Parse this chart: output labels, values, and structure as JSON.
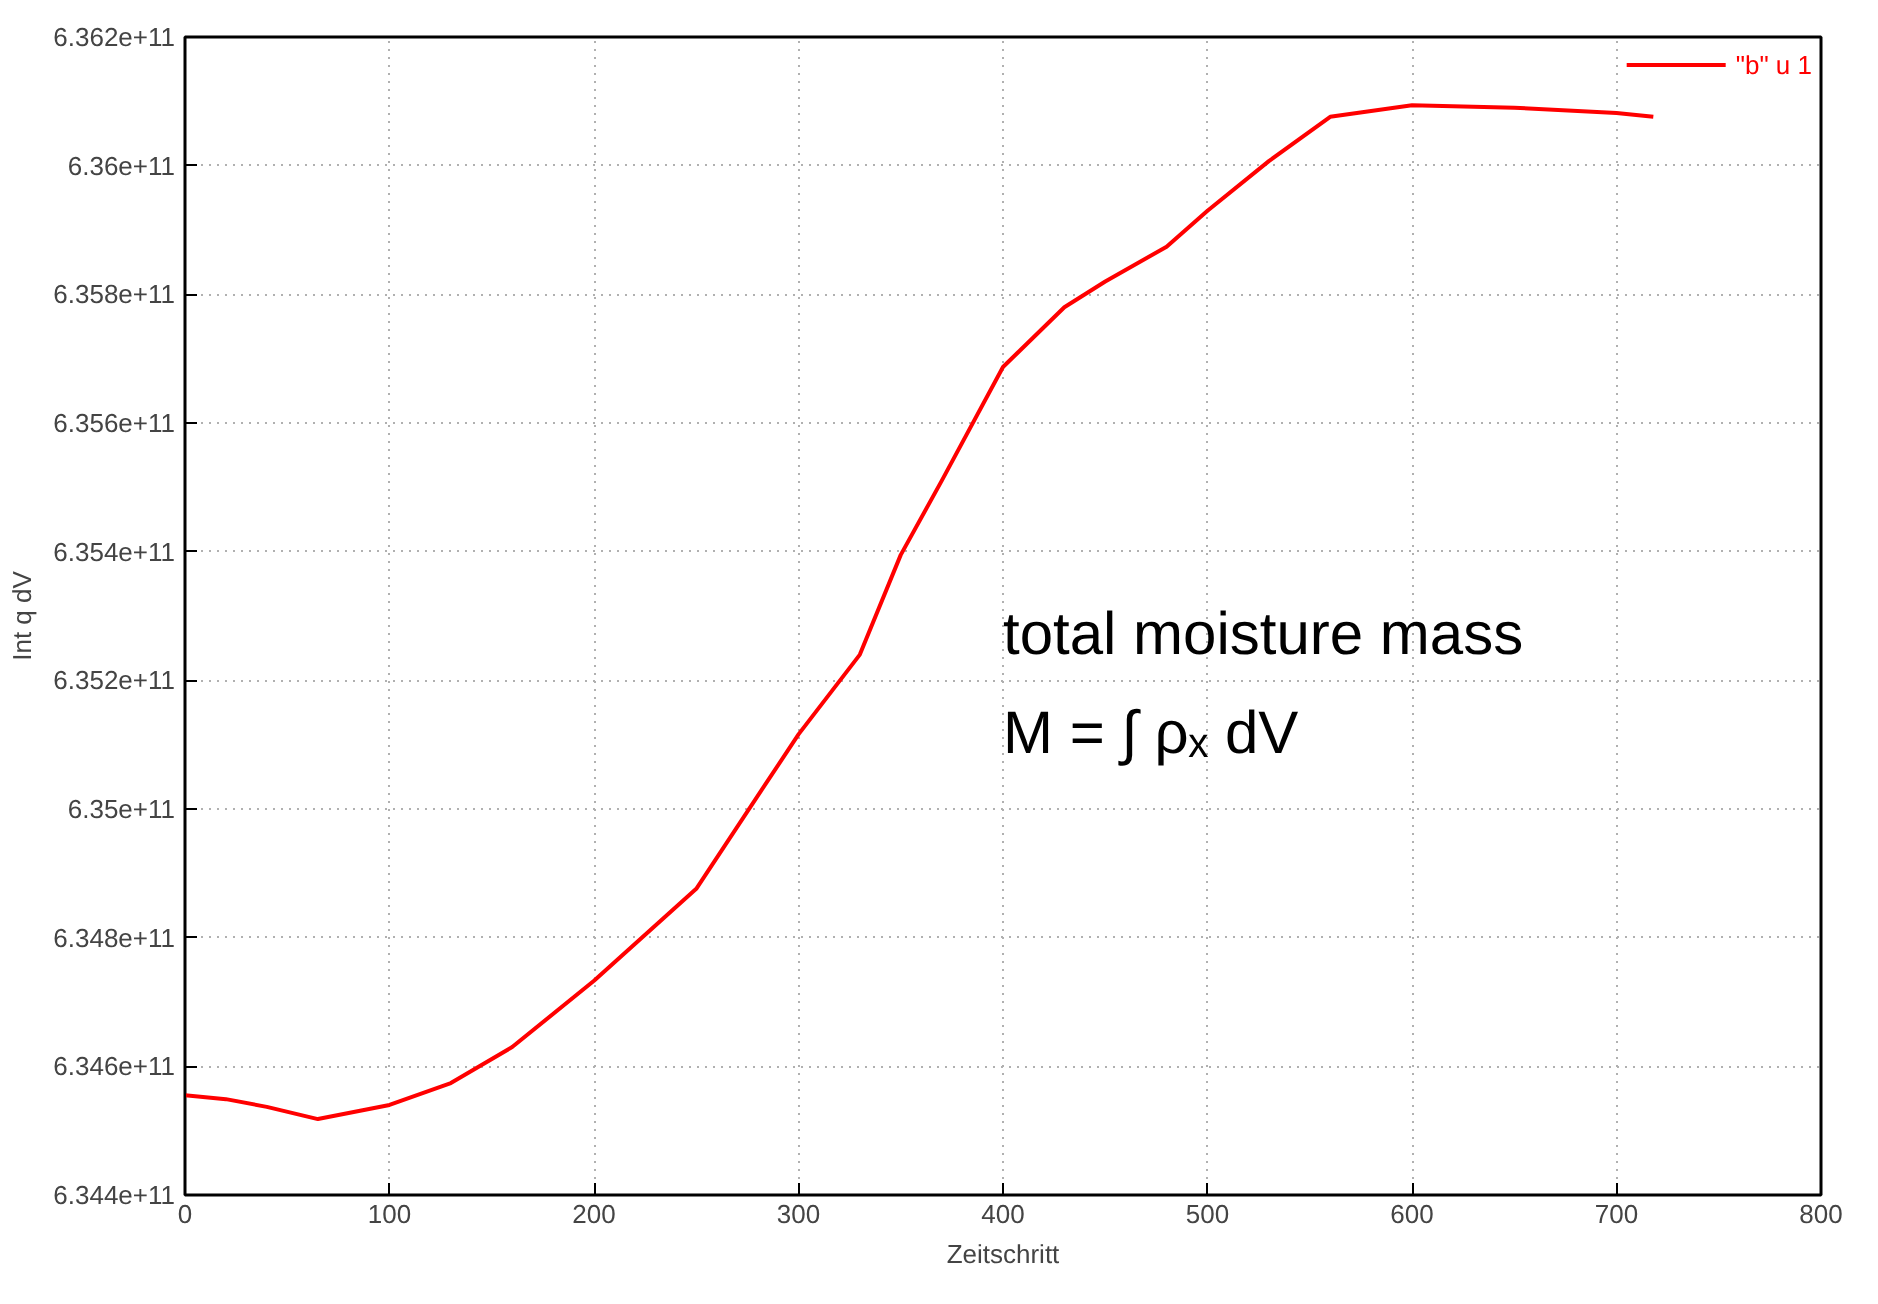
{
  "chart_data": {
    "type": "line",
    "xlabel": "Zeitschritt",
    "ylabel": "Int q dV",
    "x": [
      0,
      20,
      40,
      65,
      100,
      130,
      160,
      200,
      250,
      300,
      330,
      350,
      370,
      400,
      430,
      450,
      480,
      500,
      530,
      560,
      600,
      650,
      700,
      718
    ],
    "series": [
      {
        "name": "\"b\" u 1",
        "color": "#ff0000",
        "values": [
          634555000000,
          634549000000,
          634537000000,
          634518000000,
          634540000000,
          634574000000,
          634630000000,
          634733000000,
          634876000000,
          635116000000,
          635240000000,
          635395000000,
          635510000000,
          635687000000,
          635780000000,
          635820000000,
          635874000000,
          635930000000,
          636007000000,
          636076000000,
          636094000000,
          636090000000,
          636082000000,
          636076000000
        ]
      }
    ],
    "xlim": [
      0,
      800
    ],
    "xticks": [
      0,
      100,
      200,
      300,
      400,
      500,
      600,
      700,
      800
    ],
    "ylim": [
      634400000000,
      636200000000
    ],
    "yticks": [
      {
        "value": 634400000000,
        "label": "6.344e+11"
      },
      {
        "value": 634600000000,
        "label": "6.346e+11"
      },
      {
        "value": 634800000000,
        "label": "6.348e+11"
      },
      {
        "value": 635000000000,
        "label": "6.35e+11"
      },
      {
        "value": 635200000000,
        "label": "6.352e+11"
      },
      {
        "value": 635400000000,
        "label": "6.354e+11"
      },
      {
        "value": 635600000000,
        "label": "6.356e+11"
      },
      {
        "value": 635800000000,
        "label": "6.358e+11"
      },
      {
        "value": 636000000000,
        "label": "6.36e+11"
      },
      {
        "value": 636200000000,
        "label": "6.362e+11"
      }
    ],
    "annotations": [
      "total moisture mass",
      "M = ∫ ρₓ dV"
    ],
    "grid": true,
    "legend": "top right",
    "marker": "none",
    "line_style": "solid"
  }
}
